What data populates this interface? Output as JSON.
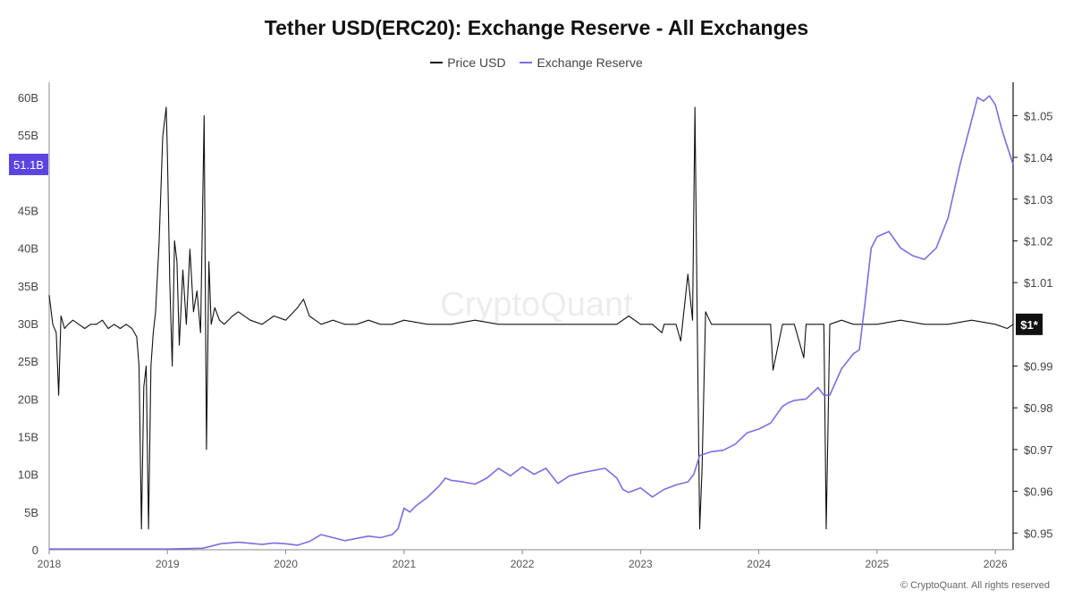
{
  "chart_data": {
    "type": "line",
    "title": "Tether USD(ERC20): Exchange Reserve - All Exchanges",
    "xlabel": "",
    "ylabel_left": "",
    "ylabel_right": "",
    "x_ticks": [
      "2018",
      "2019",
      "2020",
      "2021",
      "2022",
      "2023",
      "2024",
      "2025",
      "2026"
    ],
    "y_left_ticks": [
      "0",
      "5B",
      "10B",
      "15B",
      "20B",
      "25B",
      "30B",
      "35B",
      "40B",
      "45B",
      "55B",
      "60B"
    ],
    "y_left_tick_values": [
      0,
      5,
      10,
      15,
      20,
      25,
      30,
      35,
      40,
      45,
      55,
      60
    ],
    "y_right_ticks": [
      "$0.95",
      "$0.96",
      "$0.97",
      "$0.98",
      "$0.99",
      "$1.01",
      "$1.02",
      "$1.03",
      "$1.04",
      "$1.05"
    ],
    "y_right_tick_values": [
      0.95,
      0.96,
      0.97,
      0.98,
      0.99,
      1.01,
      1.02,
      1.03,
      1.04,
      1.05
    ],
    "y_left_lim": [
      0,
      62
    ],
    "y_right_lim": [
      0.946,
      1.058
    ],
    "x_lim": [
      2018.0,
      2026.15
    ],
    "grid": false,
    "legend_position": "top-center",
    "current_labels": {
      "reserve_label": "51.1B",
      "reserve_value": 51.1,
      "price_label": "$1*",
      "price_value": 1.0
    },
    "series": [
      {
        "name": "Price USD",
        "axis": "right",
        "color": "#111111",
        "x": [
          2018.0,
          2018.03,
          2018.06,
          2018.08,
          2018.1,
          2018.13,
          2018.16,
          2018.2,
          2018.25,
          2018.3,
          2018.35,
          2018.4,
          2018.45,
          2018.5,
          2018.55,
          2018.6,
          2018.65,
          2018.7,
          2018.74,
          2018.76,
          2018.78,
          2018.8,
          2018.82,
          2018.84,
          2018.86,
          2018.88,
          2018.9,
          2018.93,
          2018.96,
          2018.99,
          2019.0,
          2019.02,
          2019.04,
          2019.06,
          2019.08,
          2019.1,
          2019.13,
          2019.16,
          2019.19,
          2019.22,
          2019.25,
          2019.28,
          2019.31,
          2019.33,
          2019.35,
          2019.37,
          2019.4,
          2019.44,
          2019.48,
          2019.55,
          2019.6,
          2019.7,
          2019.8,
          2019.9,
          2020.0,
          2020.1,
          2020.15,
          2020.2,
          2020.25,
          2020.3,
          2020.4,
          2020.5,
          2020.6,
          2020.7,
          2020.8,
          2020.9,
          2021.0,
          2021.2,
          2021.4,
          2021.6,
          2021.8,
          2022.0,
          2022.2,
          2022.4,
          2022.6,
          2022.8,
          2022.9,
          2023.0,
          2023.1,
          2023.18,
          2023.2,
          2023.3,
          2023.34,
          2023.4,
          2023.44,
          2023.46,
          2023.48,
          2023.5,
          2023.52,
          2023.55,
          2023.6,
          2023.7,
          2023.8,
          2023.9,
          2024.0,
          2024.1,
          2024.12,
          2024.2,
          2024.3,
          2024.38,
          2024.4,
          2024.5,
          2024.55,
          2024.57,
          2024.6,
          2024.7,
          2024.8,
          2024.9,
          2025.0,
          2025.2,
          2025.4,
          2025.6,
          2025.8,
          2026.0,
          2026.1,
          2026.15
        ],
        "values": [
          1.007,
          1.0,
          0.998,
          0.983,
          1.002,
          0.999,
          1.0,
          1.001,
          1.0,
          0.999,
          1.0,
          1.0,
          1.001,
          0.999,
          1.0,
          0.999,
          1.0,
          0.999,
          0.997,
          0.99,
          0.951,
          0.985,
          0.99,
          0.951,
          0.99,
          0.998,
          1.003,
          1.02,
          1.045,
          1.052,
          1.04,
          1.01,
          0.99,
          1.02,
          1.015,
          0.995,
          1.013,
          1.0,
          1.018,
          1.003,
          1.008,
          0.998,
          1.05,
          0.97,
          1.015,
          1.0,
          1.004,
          1.001,
          1.0,
          1.002,
          1.003,
          1.001,
          1.0,
          1.002,
          1.001,
          1.004,
          1.006,
          1.002,
          1.001,
          1.0,
          1.001,
          1.0,
          1.0,
          1.001,
          1.0,
          1.0,
          1.001,
          1.0,
          1.0,
          1.001,
          1.0,
          1.0,
          1.0,
          1.0,
          1.0,
          1.0,
          1.002,
          1.0,
          1.0,
          0.998,
          1.0,
          1.0,
          0.996,
          1.012,
          1.001,
          1.052,
          1.0,
          0.951,
          0.965,
          1.003,
          1.0,
          1.0,
          1.0,
          1.0,
          1.0,
          1.0,
          0.989,
          1.0,
          1.0,
          0.992,
          1.0,
          1.0,
          1.0,
          0.951,
          1.0,
          1.001,
          1.0,
          1.0,
          1.0,
          1.001,
          1.0,
          1.0,
          1.001,
          1.0,
          0.999,
          1.0
        ]
      },
      {
        "name": "Exchange Reserve",
        "axis": "left",
        "color": "#7b6ee0",
        "x": [
          2018.0,
          2018.5,
          2019.0,
          2019.3,
          2019.45,
          2019.6,
          2019.8,
          2019.9,
          2020.0,
          2020.1,
          2020.2,
          2020.3,
          2020.4,
          2020.5,
          2020.6,
          2020.7,
          2020.8,
          2020.9,
          2020.95,
          2021.0,
          2021.05,
          2021.1,
          2021.2,
          2021.3,
          2021.35,
          2021.4,
          2021.5,
          2021.6,
          2021.7,
          2021.8,
          2021.9,
          2022.0,
          2022.1,
          2022.2,
          2022.3,
          2022.4,
          2022.5,
          2022.6,
          2022.7,
          2022.8,
          2022.85,
          2022.9,
          2023.0,
          2023.1,
          2023.2,
          2023.3,
          2023.4,
          2023.45,
          2023.5,
          2023.6,
          2023.7,
          2023.8,
          2023.9,
          2024.0,
          2024.1,
          2024.2,
          2024.25,
          2024.3,
          2024.4,
          2024.5,
          2024.55,
          2024.6,
          2024.7,
          2024.8,
          2024.85,
          2024.9,
          2024.95,
          2025.0,
          2025.1,
          2025.2,
          2025.3,
          2025.4,
          2025.5,
          2025.6,
          2025.7,
          2025.8,
          2025.85,
          2025.9,
          2025.95,
          2026.0,
          2026.05,
          2026.1,
          2026.15
        ],
        "values": [
          0.1,
          0.1,
          0.1,
          0.2,
          0.8,
          1.0,
          0.7,
          0.9,
          0.8,
          0.6,
          1.1,
          2.0,
          1.6,
          1.2,
          1.5,
          1.8,
          1.6,
          2.0,
          2.8,
          5.5,
          5.0,
          5.8,
          7.0,
          8.5,
          9.5,
          9.2,
          9.0,
          8.7,
          9.5,
          10.8,
          9.8,
          11.0,
          10.0,
          10.8,
          8.8,
          9.8,
          10.2,
          10.5,
          10.8,
          9.5,
          8.0,
          7.6,
          8.2,
          7.0,
          8.0,
          8.6,
          9.0,
          10.0,
          12.5,
          13.0,
          13.2,
          14.0,
          15.5,
          16.0,
          16.8,
          19.0,
          19.5,
          19.8,
          20.0,
          21.5,
          20.5,
          20.5,
          24.0,
          26.0,
          26.5,
          33.0,
          40.0,
          41.5,
          42.2,
          40.0,
          39.0,
          38.5,
          40.0,
          44.0,
          51.0,
          57.0,
          60.0,
          59.5,
          60.2,
          59.0,
          56.0,
          53.5,
          51.1
        ]
      }
    ]
  },
  "footer": {
    "copyright": "© CryptoQuant. All rights reserved",
    "watermark": "CryptoQuant"
  }
}
